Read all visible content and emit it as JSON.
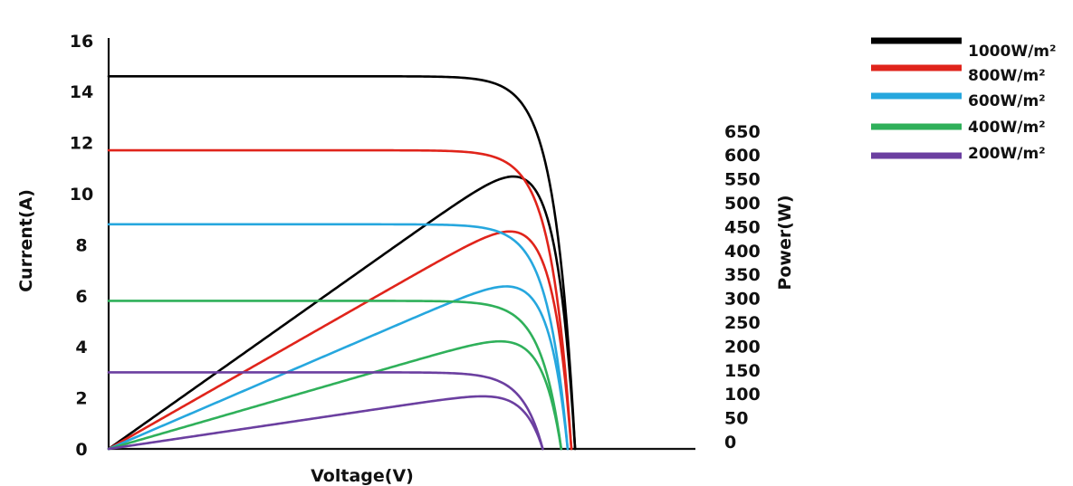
{
  "chart_data": {
    "type": "line",
    "title": "",
    "xlabel": "Voltage(V)",
    "ylabel": "Current(A)",
    "y2label": "Power(W)",
    "ylim": [
      0,
      16
    ],
    "y2lim": [
      0,
      650
    ],
    "y_ticks": [
      "0",
      "2",
      "4",
      "6",
      "8",
      "10",
      "12",
      "14",
      "16"
    ],
    "y2_ticks": [
      "0",
      "50",
      "100",
      "150",
      "200",
      "250",
      "300",
      "350",
      "400",
      "450",
      "500",
      "550",
      "600",
      "650"
    ],
    "grid": false,
    "legend_position": "top-right",
    "series": [
      {
        "name": "1000W/m²",
        "color": "#000000",
        "isc": 14.6,
        "voc": 50.5,
        "vmp": 41.8,
        "pmax": 570
      },
      {
        "name": "800W/m²",
        "color": "#e0241b",
        "isc": 11.7,
        "voc": 50.1,
        "vmp": 41.8,
        "pmax": 455
      },
      {
        "name": "600W/m²",
        "color": "#26a7de",
        "isc": 8.8,
        "voc": 49.7,
        "vmp": 41.3,
        "pmax": 340
      },
      {
        "name": "400W/m²",
        "color": "#2fb05a",
        "isc": 5.8,
        "voc": 49.0,
        "vmp": 41.0,
        "pmax": 225
      },
      {
        "name": "200W/m²",
        "color": "#6b3fa0",
        "isc": 3.0,
        "voc": 47.0,
        "vmp": 39.0,
        "pmax": 110
      }
    ]
  }
}
